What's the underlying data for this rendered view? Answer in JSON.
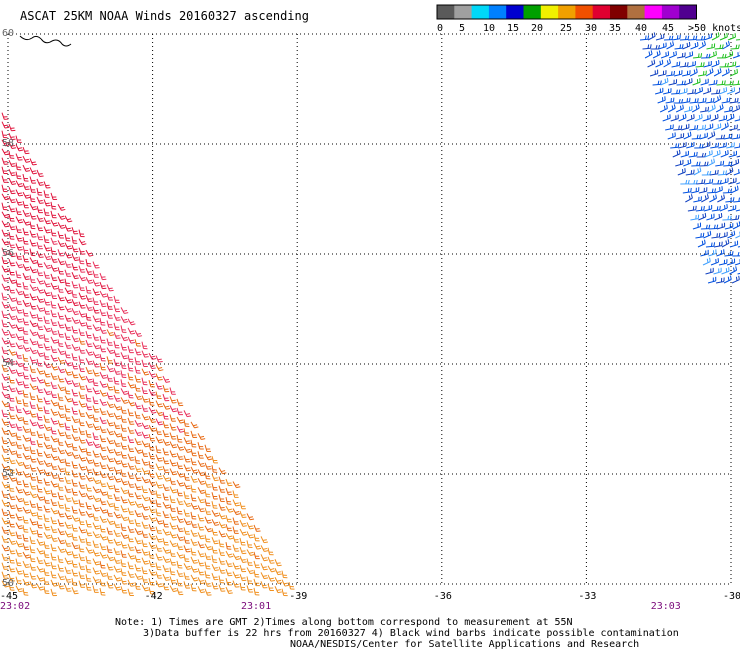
{
  "title": "ASCAT 25KM NOAA Winds 20160327 ascending",
  "legend": {
    "labels": [
      "0",
      "5",
      "10",
      "15",
      "20",
      "25",
      "30",
      "35",
      "40",
      "45",
      ">50 knots"
    ],
    "colors": [
      "#5a5a5a",
      "#a0a0a0",
      "#00d8f8",
      "#0080ff",
      "#0000d0",
      "#00a000",
      "#f0f000",
      "#f0a000",
      "#f05000",
      "#e00030",
      "#800000",
      "#b07040",
      "#ff00ff",
      "#a000d0",
      "#500090"
    ]
  },
  "map": {
    "lon_range": [
      -45,
      -30
    ],
    "lat_range": [
      50,
      60
    ],
    "x_ticks": [
      {
        "value": -45,
        "label": "-45"
      },
      {
        "value": -42,
        "label": "-42"
      },
      {
        "value": -39,
        "label": "-39"
      },
      {
        "value": -36,
        "label": "-36"
      },
      {
        "value": -33,
        "label": "-33"
      },
      {
        "value": -30,
        "label": "-30"
      }
    ],
    "y_ticks": [
      {
        "value": 60,
        "label": "60"
      },
      {
        "value": 58,
        "label": "58"
      },
      {
        "value": 56,
        "label": "56"
      },
      {
        "value": 54,
        "label": "54"
      },
      {
        "value": 52,
        "label": "52"
      },
      {
        "value": 50,
        "label": "50"
      }
    ],
    "grid": "dotted",
    "swaths": [
      {
        "name": "west-swath",
        "colors": [
          "#e0143c",
          "#e8305a",
          "#e86a14",
          "#f09020"
        ]
      },
      {
        "name": "east-swath",
        "colors": [
          "#0050e0",
          "#1040c0",
          "#40a0ff",
          "#20c020"
        ]
      }
    ]
  },
  "times": [
    {
      "label": "23:02",
      "lon": -45
    },
    {
      "label": "23:01",
      "lon": -40
    },
    {
      "label": "23:03",
      "lon": -31.5
    }
  ],
  "notes": {
    "line1": "Note: 1) Times are GMT 2)Times along bottom correspond to measurement at 55N",
    "line2": "3)Data buffer is 22 hrs from 20160327 4) Black wind barbs indicate possible contamination",
    "line3": "NOAA/NESDIS/Center for Satellite Applications and Research"
  }
}
